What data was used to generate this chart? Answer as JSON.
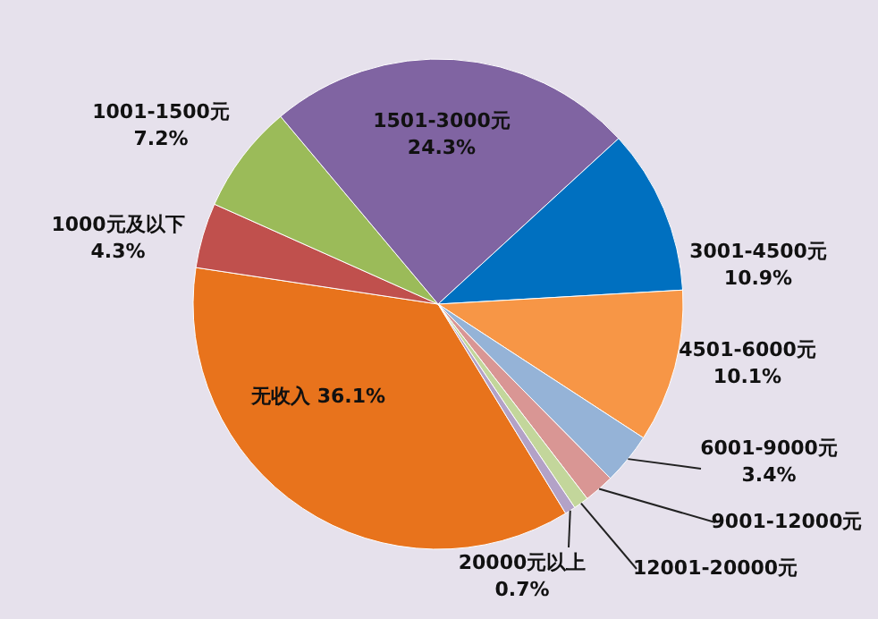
{
  "chart_data": {
    "type": "pie",
    "categories": [
      "无收入",
      "1000元及以下",
      "1001-1500元",
      "1501-3000元",
      "3001-4500元",
      "4501-6000元",
      "6001-9000元",
      "9001-12000元",
      "12001-20000元",
      "20000元以上"
    ],
    "values": [
      36.1,
      4.3,
      7.2,
      24.3,
      10.9,
      10.1,
      3.4,
      2.0,
      1.0,
      0.7
    ],
    "value_labels": [
      "36.1%",
      "4.3%",
      "7.2%",
      "24.3%",
      "10.9%",
      "10.1%",
      "3.4%",
      null,
      null,
      "0.7%"
    ],
    "colors": [
      "#e8731c",
      "#c0504d",
      "#9bbb59",
      "#8064a2",
      "#0070c0",
      "#f79646",
      "#95b3d7",
      "#d99694",
      "#c3d69b",
      "#b3a2c7"
    ]
  }
}
